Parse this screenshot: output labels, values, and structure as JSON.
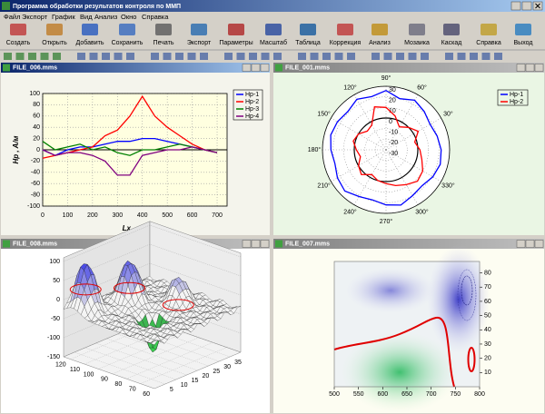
{
  "app": {
    "title": "Программа обработки результатов контроля по ММП",
    "menu": [
      "Файл",
      "Экспорт",
      "График",
      "Вид",
      "Анализ",
      "Окно",
      "Справка"
    ],
    "toolbar": [
      "Создать",
      "Открыть",
      "Добавить",
      "Сохранить",
      "Печать",
      "Экспорт",
      "Параметры",
      "Масштаб",
      "Таблица",
      "Коррекция",
      "Анализ",
      "Мозаика",
      "Каскад",
      "Справка",
      "Выход"
    ]
  },
  "windows": [
    {
      "title": "FILE_006.mms",
      "chart": {
        "type": "line",
        "x_label": "Lx , мм",
        "y_label": "Hp , A/м",
        "x": [
          0,
          50,
          100,
          150,
          200,
          250,
          300,
          350,
          400,
          450,
          500,
          550,
          600,
          650,
          700
        ],
        "series": [
          {
            "name": "Hp-1",
            "color": "#0000ff",
            "values": [
              0,
              -10,
              0,
              5,
              5,
              10,
              15,
              15,
              20,
              20,
              15,
              10,
              5,
              0,
              -5
            ]
          },
          {
            "name": "Hp-2",
            "color": "#ff0000",
            "values": [
              -15,
              -10,
              -5,
              0,
              5,
              25,
              35,
              60,
              95,
              60,
              40,
              25,
              10,
              0,
              -5
            ]
          },
          {
            "name": "Hp-3",
            "color": "#008000",
            "values": [
              15,
              0,
              5,
              10,
              0,
              5,
              -5,
              -10,
              0,
              0,
              5,
              10,
              5,
              0,
              -5
            ]
          },
          {
            "name": "Hp-4",
            "color": "#800080",
            "values": [
              0,
              -10,
              -5,
              -5,
              -10,
              -20,
              -45,
              -45,
              -10,
              -5,
              0,
              0,
              5,
              0,
              -5
            ]
          }
        ],
        "xlim": [
          0,
          740
        ],
        "ylim": [
          -100,
          100
        ],
        "xticks": [
          0,
          100,
          200,
          300,
          400,
          500,
          600,
          700
        ],
        "yticks": [
          -100,
          -80,
          -60,
          -40,
          -20,
          0,
          20,
          40,
          60,
          80,
          100
        ],
        "grid": true
      }
    },
    {
      "title": "FILE_001.mms",
      "chart": {
        "type": "polar",
        "theta": [
          0,
          15,
          30,
          45,
          60,
          75,
          90,
          105,
          120,
          135,
          150,
          165,
          180,
          195,
          210,
          225,
          240,
          255,
          270,
          285,
          300,
          315,
          330,
          345
        ],
        "series": [
          {
            "name": "Hp-1",
            "color": "#0000ff",
            "values": [
              22,
              20,
              18,
              21,
              24,
              20,
              26,
              22,
              25,
              21,
              23,
              24,
              22,
              20,
              23,
              25,
              21,
              19,
              22,
              24,
              20,
              18,
              21,
              23
            ]
          },
          {
            "name": "Hp-2",
            "color": "#ff0000",
            "values": [
              2,
              -2,
              5,
              0,
              -5,
              3,
              10,
              12,
              -3,
              -5,
              0,
              2,
              -2,
              -5,
              0,
              3,
              -3,
              0,
              2,
              5,
              8,
              12,
              10,
              5
            ]
          }
        ],
        "rlim": [
          -30,
          30
        ],
        "rticks": [
          -30,
          -20,
          -10,
          0,
          10,
          20,
          30
        ],
        "angleticks": [
          {
            "value": 30,
            "label": "30°"
          },
          {
            "value": 60,
            "label": "60°"
          },
          {
            "value": 90,
            "label": "90°"
          },
          {
            "value": 120,
            "label": "120°"
          },
          {
            "value": 150,
            "label": "150°"
          },
          {
            "value": 180,
            "label": "180°"
          },
          {
            "value": 210,
            "label": "210°"
          },
          {
            "value": 240,
            "label": "240°"
          },
          {
            "value": 270,
            "label": "270°"
          },
          {
            "value": 300,
            "label": "300°"
          },
          {
            "value": 330,
            "label": "330°"
          }
        ]
      }
    },
    {
      "title": "FILE_008.mms",
      "chart": {
        "type": "surface3d",
        "xlim": [
          0,
          40
        ],
        "xticks": [
          5,
          10,
          15,
          20,
          25,
          30,
          35
        ],
        "ylim": [
          60,
          125
        ],
        "yticks": [
          60,
          70,
          80,
          90,
          100,
          110,
          120
        ],
        "zlim": [
          -150,
          110
        ],
        "zticks": [
          -150,
          -100,
          -50,
          0,
          50,
          100
        ]
      }
    },
    {
      "title": "FILE_007.mms",
      "chart": {
        "type": "contour",
        "xlim": [
          500,
          800
        ],
        "xticks": [
          500,
          550,
          600,
          650,
          700,
          750,
          800
        ],
        "ylim": [
          0,
          88
        ],
        "yticks": [
          10,
          20,
          30,
          40,
          50,
          60,
          70,
          80
        ]
      }
    }
  ]
}
